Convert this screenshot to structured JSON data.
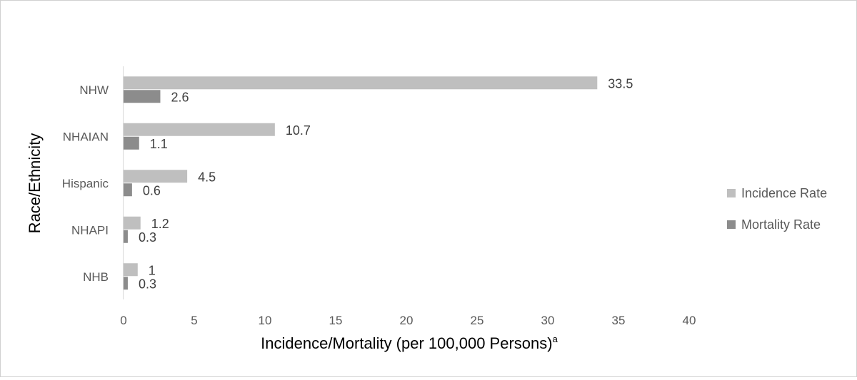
{
  "chart_data": {
    "type": "bar",
    "orientation": "horizontal",
    "categories": [
      "NHW",
      "NHAIAN",
      "Hispanic",
      "NHAPI",
      "NHB"
    ],
    "series": [
      {
        "name": "Incidence Rate",
        "values": [
          33.5,
          10.7,
          4.5,
          1.2,
          1
        ],
        "labels": [
          "33.5",
          "10.7",
          "4.5",
          "1.2",
          "1"
        ],
        "color": "#bfbfbf"
      },
      {
        "name": "Mortality Rate",
        "values": [
          2.6,
          1.1,
          0.6,
          0.3,
          0.3
        ],
        "labels": [
          "2.6",
          "1.1",
          "0.6",
          "0.3",
          "0.3"
        ],
        "color": "#8c8c8c"
      }
    ],
    "xlabel": "Incidence/Mortality (per 100,000 Persons)",
    "xlabel_superscript": "a",
    "ylabel": "Race/Ethnicity",
    "xlim": [
      0,
      40
    ],
    "xticks": [
      "0",
      "5",
      "10",
      "15",
      "20",
      "25",
      "30",
      "35",
      "40"
    ],
    "grid": false,
    "legend_position": "right"
  }
}
